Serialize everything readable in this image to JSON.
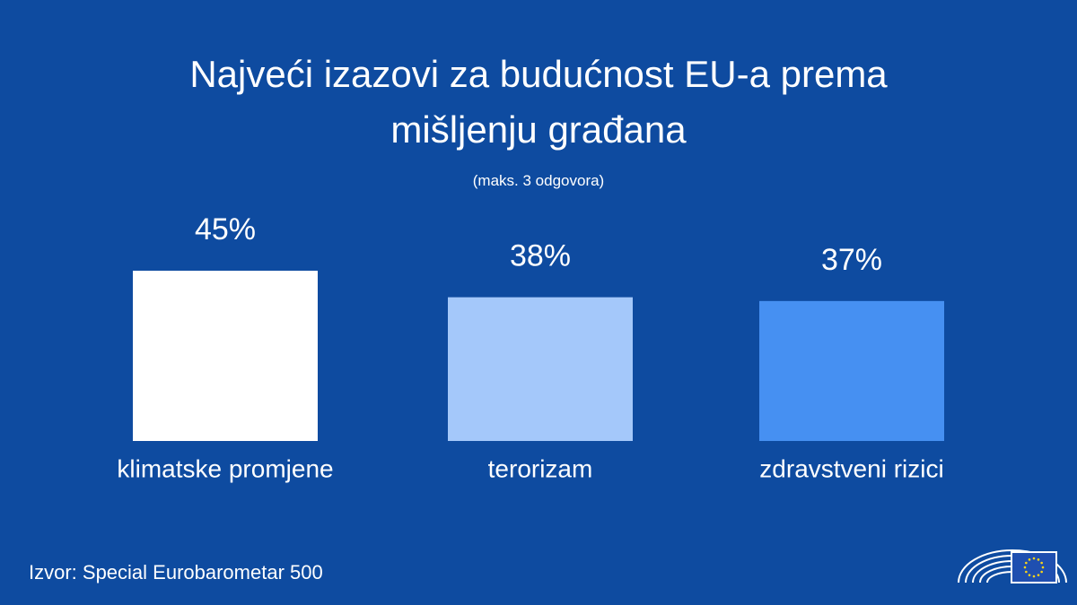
{
  "chart_data": {
    "type": "bar",
    "title": "Najveći izazovi za budućnost EU-a prema mišljenju građana",
    "subtitle": "(maks. 3 odgovora)",
    "categories": [
      "klimatske promjene",
      "terorizam",
      "zdravstveni rizici"
    ],
    "values": [
      45,
      38,
      37
    ],
    "value_labels": [
      "45%",
      "38%",
      "37%"
    ],
    "colors": [
      "#ffffff",
      "#a4c8fa",
      "#4690f2"
    ],
    "source": "Izvor: Special Eurobarometar 500"
  }
}
